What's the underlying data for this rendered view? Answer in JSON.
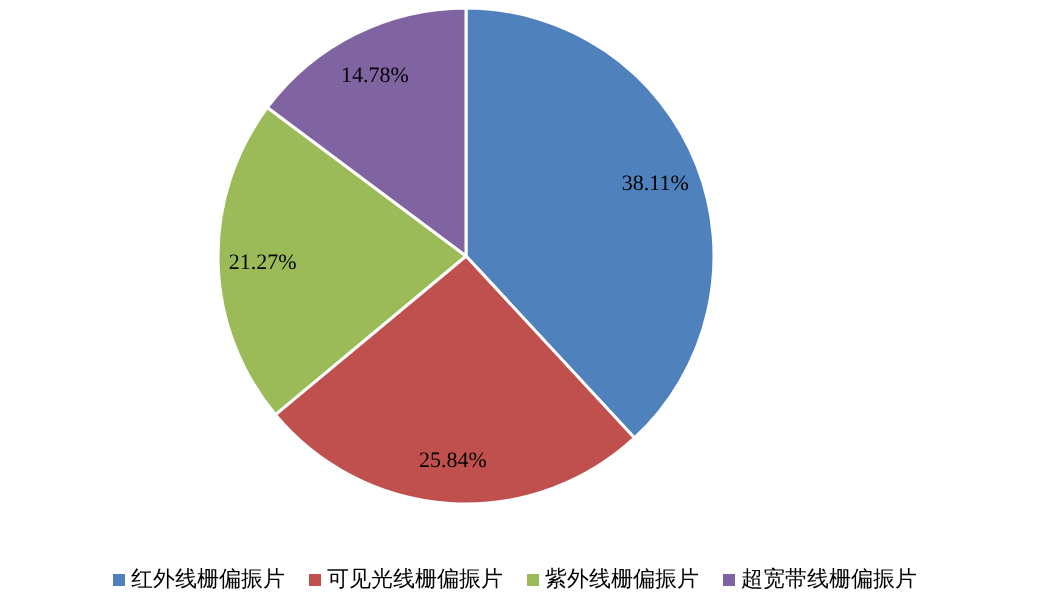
{
  "chart_data": {
    "type": "pie",
    "categories": [
      "红外线栅偏振片",
      "可见光线栅偏振片",
      "紫外线栅偏振片",
      "超宽带线栅偏振片"
    ],
    "values": [
      38.11,
      25.84,
      21.27,
      14.78
    ],
    "colors": [
      "#4f81bd",
      "#c0504d",
      "#9bbb59",
      "#8064a2"
    ],
    "value_labels": [
      "38.11%",
      "25.84%",
      "21.27%",
      "14.78%"
    ],
    "legend": "bottom"
  }
}
